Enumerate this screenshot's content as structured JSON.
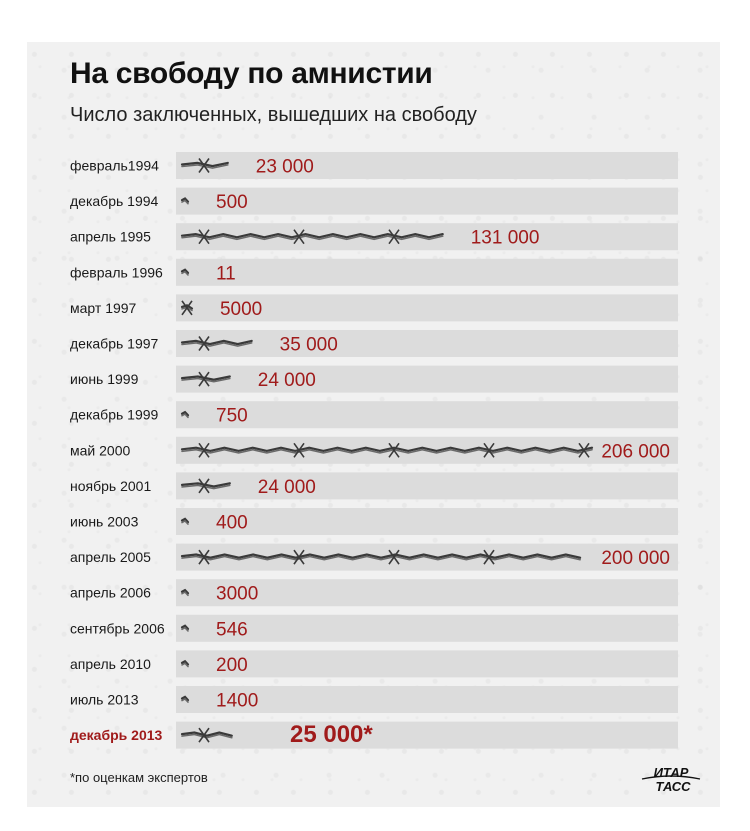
{
  "header": {
    "title": "На свободу по амнистии",
    "subtitle": "Число заключенных, вышедших на свободу"
  },
  "footnote": "*по оценкам экспертов",
  "logo": {
    "line1": "ИТАР",
    "line2": "ТАСС"
  },
  "colors": {
    "accent": "#a01b1b",
    "band": "#dcdcdc",
    "wire": "#3a3a3a",
    "background": "#f1f1f1"
  },
  "chart_data": {
    "type": "bar",
    "orientation": "horizontal",
    "title": "На свободу по амнистии",
    "subtitle": "Число заключенных, вышедших на свободу",
    "categories": [
      "февраль1994",
      "декабрь 1994",
      "апрель 1995",
      "февраль 1996",
      "март 1997",
      "декабрь 1997",
      "июнь 1999",
      "декабрь 1999",
      "май 2000",
      "ноябрь 2001",
      "июнь 2003",
      "апрель 2005",
      "апрель 2006",
      "сентябрь 2006",
      "апрель 2010",
      "июль 2013",
      "декабрь 2013"
    ],
    "values": [
      23000,
      500,
      131000,
      11,
      5000,
      35000,
      24000,
      750,
      206000,
      24000,
      400,
      200000,
      3000,
      546,
      200,
      1400,
      25000
    ],
    "value_labels": [
      "23 000",
      "500",
      "131 000",
      "11",
      "5000",
      "35 000",
      "24 000",
      "750",
      "206 000",
      "24 000",
      "400",
      "200 000",
      "3000",
      "546",
      "200",
      "1400",
      "25 000*"
    ],
    "highlight_index": 16,
    "grid": false,
    "legend": "none"
  }
}
